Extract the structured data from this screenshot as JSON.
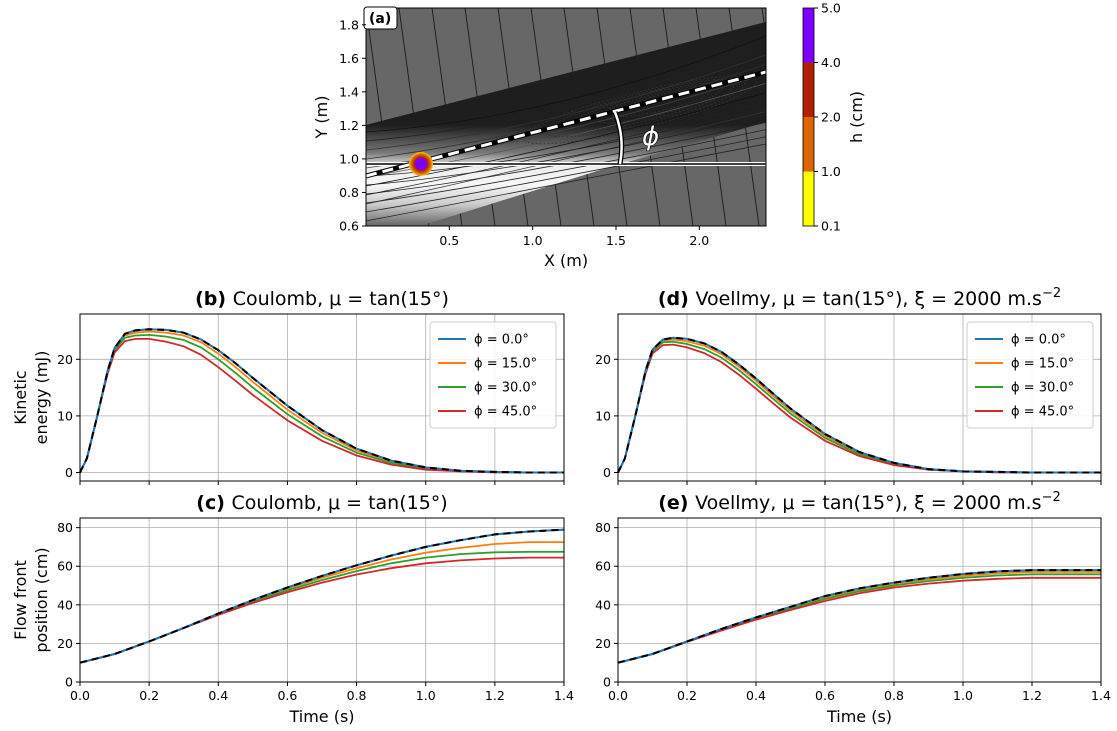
{
  "colors": {
    "phi0": "#1f77b4",
    "phi15": "#ff7f0e",
    "phi30": "#2ca02c",
    "phi45": "#d62728",
    "reference": "#000000",
    "grid": "#b0b0b0",
    "map_background": "#676767",
    "colorbar": [
      "#ffff00",
      "#dd6600",
      "#b22000",
      "#7b00ff"
    ]
  },
  "chart_data": [
    {
      "id": "a",
      "type": "heatmap",
      "panel_label": "(a)",
      "xlabel": "X (m)",
      "ylabel": "Y (m)",
      "xlim": [
        0.0,
        2.4
      ],
      "ylim": [
        0.6,
        1.9
      ],
      "xticks": [
        "0.5",
        "1.0",
        "1.5",
        "2.0"
      ],
      "xtick_values": [
        0.5,
        1.0,
        1.5,
        2.0
      ],
      "yticks": [
        "0.6",
        "0.8",
        "1.0",
        "1.2",
        "1.4",
        "1.6",
        "1.8"
      ],
      "ytick_values": [
        0.6,
        0.8,
        1.0,
        1.2,
        1.4,
        1.6,
        1.8
      ],
      "annotation": "ϕ",
      "release_point": {
        "x": 0.33,
        "y": 0.97
      },
      "colorbar": {
        "label": "h (cm)",
        "tick_labels": [
          "0.1",
          "1.0",
          "2.0",
          "4.0",
          "5.0"
        ],
        "bins": [
          {
            "from": 0.1,
            "to": 1.0,
            "color": "#ffff00"
          },
          {
            "from": 1.0,
            "to": 2.0,
            "color": "#dd6600"
          },
          {
            "from": 2.0,
            "to": 4.0,
            "color": "#b22000"
          },
          {
            "from": 4.0,
            "to": 5.0,
            "color": "#7b00ff"
          }
        ]
      }
    },
    {
      "id": "b",
      "type": "line",
      "title_bold": "(b)",
      "title": "Coulomb, μ = tan(15°)",
      "ylabel_lines": [
        "Kinetic",
        "energy (mJ)"
      ],
      "xlabel": "",
      "xlim": [
        0,
        1.4
      ],
      "ylim": [
        -1.5,
        28
      ],
      "yticks": [
        "0",
        "10",
        "20"
      ],
      "ytick_values": [
        0,
        10,
        20
      ],
      "xtick_values": [
        0,
        0.2,
        0.4,
        0.6,
        0.8,
        1.0,
        1.2,
        1.4
      ],
      "legend": "top-right",
      "x": [
        0.0,
        0.02,
        0.05,
        0.08,
        0.1,
        0.13,
        0.16,
        0.2,
        0.25,
        0.3,
        0.35,
        0.4,
        0.45,
        0.5,
        0.6,
        0.7,
        0.8,
        0.9,
        1.0,
        1.1,
        1.2,
        1.3,
        1.4
      ],
      "series": [
        {
          "name": "ϕ = 0.0°",
          "color": "#1f77b4",
          "values": [
            0,
            2.5,
            10,
            18,
            22,
            24.5,
            25.1,
            25.3,
            25.2,
            24.7,
            23.5,
            21.6,
            19.3,
            16.7,
            11.8,
            7.5,
            4.2,
            2.1,
            0.9,
            0.3,
            0.1,
            0.0,
            0.0
          ]
        },
        {
          "name": "ϕ = 15.0°",
          "color": "#ff7f0e",
          "values": [
            0,
            2.5,
            10,
            18,
            21.8,
            24.2,
            24.7,
            24.9,
            24.7,
            24.2,
            23.0,
            21.0,
            18.6,
            16.0,
            11.1,
            7.0,
            3.9,
            1.9,
            0.8,
            0.3,
            0.1,
            0.0,
            0.0
          ]
        },
        {
          "name": "ϕ = 30.0°",
          "color": "#2ca02c",
          "values": [
            0,
            2.5,
            10,
            18,
            21.6,
            23.8,
            24.2,
            24.3,
            24.0,
            23.4,
            22.1,
            20.0,
            17.6,
            15.0,
            10.3,
            6.4,
            3.5,
            1.7,
            0.7,
            0.2,
            0.1,
            0.0,
            0.0
          ]
        },
        {
          "name": "ϕ = 45.0°",
          "color": "#d62728",
          "values": [
            0,
            2.5,
            10,
            17.5,
            21.2,
            23.2,
            23.6,
            23.6,
            23.1,
            22.3,
            20.8,
            18.6,
            16.2,
            13.7,
            9.2,
            5.6,
            3.0,
            1.4,
            0.5,
            0.2,
            0.0,
            0.0,
            0.0
          ]
        },
        {
          "name": "",
          "color": "#000000",
          "dashed": true,
          "values": [
            0,
            2.5,
            10,
            18,
            22,
            24.5,
            25.1,
            25.3,
            25.2,
            24.7,
            23.5,
            21.6,
            19.3,
            16.7,
            11.8,
            7.5,
            4.2,
            2.1,
            0.9,
            0.3,
            0.1,
            0.0,
            0.0
          ]
        }
      ]
    },
    {
      "id": "d",
      "type": "line",
      "title_bold": "(d)",
      "title": "Voellmy, μ = tan(15°), ξ = 2000 m.s",
      "title_sup": "−2",
      "ylabel_lines": [],
      "xlabel": "",
      "xlim": [
        0,
        1.4
      ],
      "ylim": [
        -1.5,
        28
      ],
      "yticks": [
        "0",
        "10",
        "20"
      ],
      "ytick_values": [
        0,
        10,
        20
      ],
      "xtick_values": [
        0,
        0.2,
        0.4,
        0.6,
        0.8,
        1.0,
        1.2,
        1.4
      ],
      "legend": "top-right",
      "x": [
        0.0,
        0.02,
        0.05,
        0.08,
        0.1,
        0.13,
        0.16,
        0.2,
        0.25,
        0.3,
        0.35,
        0.4,
        0.45,
        0.5,
        0.6,
        0.7,
        0.8,
        0.9,
        1.0,
        1.1,
        1.2,
        1.3,
        1.4
      ],
      "series": [
        {
          "name": "ϕ = 0.0°",
          "color": "#1f77b4",
          "values": [
            0,
            2.5,
            10,
            18,
            21.7,
            23.5,
            23.8,
            23.6,
            22.8,
            21.3,
            19.1,
            16.6,
            13.9,
            11.3,
            6.8,
            3.6,
            1.7,
            0.6,
            0.2,
            0.1,
            0.0,
            0.0,
            0.0
          ]
        },
        {
          "name": "ϕ = 15.0°",
          "color": "#ff7f0e",
          "values": [
            0,
            2.5,
            10,
            18,
            21.6,
            23.3,
            23.5,
            23.2,
            22.4,
            20.9,
            18.7,
            16.2,
            13.5,
            10.9,
            6.5,
            3.4,
            1.6,
            0.6,
            0.2,
            0.1,
            0.0,
            0.0,
            0.0
          ]
        },
        {
          "name": "ϕ = 30.0°",
          "color": "#2ca02c",
          "values": [
            0,
            2.5,
            10,
            18,
            21.4,
            23.0,
            23.1,
            22.7,
            21.8,
            20.3,
            18.1,
            15.6,
            13.0,
            10.4,
            6.1,
            3.2,
            1.5,
            0.5,
            0.2,
            0.1,
            0.0,
            0.0,
            0.0
          ]
        },
        {
          "name": "ϕ = 45.0°",
          "color": "#d62728",
          "values": [
            0,
            2.5,
            10,
            17.5,
            21.0,
            22.5,
            22.6,
            22.1,
            21.1,
            19.5,
            17.3,
            14.8,
            12.2,
            9.7,
            5.6,
            2.9,
            1.3,
            0.5,
            0.2,
            0.0,
            0.0,
            0.0,
            0.0
          ]
        },
        {
          "name": "",
          "color": "#000000",
          "dashed": true,
          "values": [
            0,
            2.5,
            10,
            18,
            21.7,
            23.5,
            23.8,
            23.6,
            22.8,
            21.3,
            19.1,
            16.6,
            13.9,
            11.3,
            6.8,
            3.6,
            1.7,
            0.6,
            0.2,
            0.1,
            0.0,
            0.0,
            0.0
          ]
        }
      ]
    },
    {
      "id": "c",
      "type": "line",
      "title_bold": "(c)",
      "title": "Coulomb, μ = tan(15°)",
      "ylabel_lines": [
        "Flow front",
        "position (cm)"
      ],
      "xlabel": "Time (s)",
      "xlim": [
        0,
        1.4
      ],
      "ylim": [
        0,
        85
      ],
      "yticks": [
        "0",
        "20",
        "40",
        "60",
        "80"
      ],
      "ytick_values": [
        0,
        20,
        40,
        60,
        80
      ],
      "xticks": [
        "0.0",
        "0.2",
        "0.4",
        "0.6",
        "0.8",
        "1.0",
        "1.2",
        "1.4"
      ],
      "xtick_values": [
        0,
        0.2,
        0.4,
        0.6,
        0.8,
        1.0,
        1.2,
        1.4
      ],
      "x": [
        0.0,
        0.1,
        0.2,
        0.3,
        0.4,
        0.5,
        0.6,
        0.7,
        0.8,
        0.9,
        1.0,
        1.1,
        1.2,
        1.3,
        1.4
      ],
      "series": [
        {
          "name": "ϕ = 0.0°",
          "color": "#1f77b4",
          "values": [
            10,
            14.5,
            21,
            28,
            35.5,
            42.5,
            49,
            55,
            60.5,
            65.5,
            70,
            73.5,
            76.5,
            78,
            79
          ]
        },
        {
          "name": "ϕ = 15.0°",
          "color": "#ff7f0e",
          "values": [
            10,
            14.5,
            21,
            28,
            35.3,
            42,
            48.3,
            54,
            59,
            63.5,
            67,
            69.5,
            71.5,
            72.5,
            72.5
          ]
        },
        {
          "name": "ϕ = 30.0°",
          "color": "#2ca02c",
          "values": [
            10,
            14.5,
            21,
            28,
            35,
            41.5,
            47.5,
            52.8,
            57.5,
            61.5,
            64.5,
            66.3,
            67.2,
            67.5,
            67.5
          ]
        },
        {
          "name": "ϕ = 45.0°",
          "color": "#d62728",
          "values": [
            10,
            14.5,
            21,
            28,
            34.8,
            41,
            46.5,
            51.5,
            55.7,
            59,
            61.5,
            63,
            64,
            64.5,
            64.5
          ]
        },
        {
          "name": "",
          "color": "#000000",
          "dashed": true,
          "values": [
            10,
            14.5,
            21,
            28,
            35.5,
            42.5,
            49,
            55,
            60.5,
            65.5,
            70,
            73.5,
            76.5,
            78,
            79
          ]
        }
      ]
    },
    {
      "id": "e",
      "type": "line",
      "title_bold": "(e)",
      "title": "Voellmy, μ = tan(15°), ξ = 2000 m.s",
      "title_sup": "−2",
      "ylabel_lines": [],
      "xlabel": "Time (s)",
      "xlim": [
        0,
        1.4
      ],
      "ylim": [
        0,
        85
      ],
      "yticks": [
        "0",
        "20",
        "40",
        "60",
        "80"
      ],
      "ytick_values": [
        0,
        20,
        40,
        60,
        80
      ],
      "xticks": [
        "0.0",
        "0.2",
        "0.4",
        "0.6",
        "0.8",
        "1.0",
        "1.2",
        "1.4"
      ],
      "xtick_values": [
        0,
        0.2,
        0.4,
        0.6,
        0.8,
        1.0,
        1.2,
        1.4
      ],
      "x": [
        0.0,
        0.1,
        0.2,
        0.3,
        0.4,
        0.5,
        0.6,
        0.7,
        0.8,
        0.9,
        1.0,
        1.1,
        1.2,
        1.3,
        1.4
      ],
      "series": [
        {
          "name": "ϕ = 0.0°",
          "color": "#1f77b4",
          "values": [
            10,
            14.5,
            21,
            27.5,
            33.5,
            39,
            44.5,
            48.5,
            51.5,
            54,
            56,
            57.3,
            58,
            58,
            58
          ]
        },
        {
          "name": "ϕ = 15.0°",
          "color": "#ff7f0e",
          "values": [
            10,
            14.5,
            21,
            27.3,
            33.2,
            38.5,
            43.8,
            47.8,
            50.8,
            53.2,
            55,
            56.3,
            57,
            57,
            57
          ]
        },
        {
          "name": "ϕ = 30.0°",
          "color": "#2ca02c",
          "values": [
            10,
            14.5,
            21,
            27,
            32.8,
            38,
            43,
            47,
            50,
            52.3,
            54,
            55.2,
            55.8,
            55.8,
            55.8
          ]
        },
        {
          "name": "ϕ = 45.0°",
          "color": "#d62728",
          "values": [
            10,
            14.5,
            20.8,
            26.7,
            32.3,
            37.3,
            42,
            46,
            49,
            51,
            52.5,
            53.5,
            54,
            54,
            54
          ]
        },
        {
          "name": "",
          "color": "#000000",
          "dashed": true,
          "values": [
            10,
            14.5,
            21,
            27.5,
            33.5,
            39,
            44.5,
            48.5,
            51.5,
            54,
            56,
            57.3,
            58,
            58,
            58
          ]
        }
      ]
    }
  ]
}
